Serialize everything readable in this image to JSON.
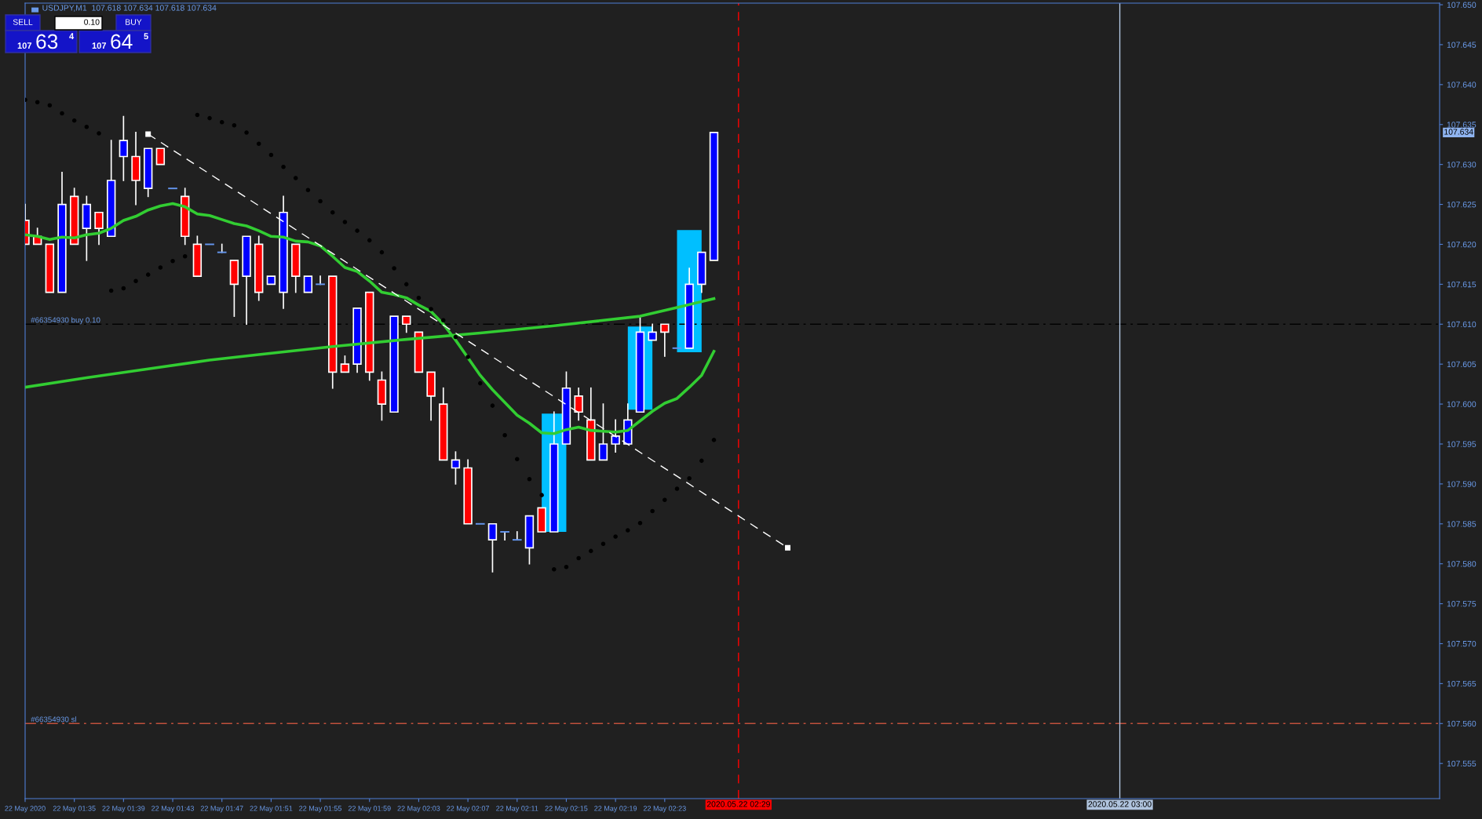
{
  "chart_data": {
    "type": "candlestick",
    "title": "USDJPY,M1  107.618 107.634 107.618 107.634",
    "x": [
      "2020-05-22T01:31",
      "2020-05-22T01:32",
      "2020-05-22T01:33",
      "2020-05-22T01:34",
      "2020-05-22T01:35",
      "2020-05-22T01:36",
      "2020-05-22T01:37",
      "2020-05-22T01:38",
      "2020-05-22T01:39",
      "2020-05-22T01:40",
      "2020-05-22T01:41",
      "2020-05-22T01:42",
      "2020-05-22T01:43",
      "2020-05-22T01:44",
      "2020-05-22T01:45",
      "2020-05-22T01:46",
      "2020-05-22T01:47",
      "2020-05-22T01:48",
      "2020-05-22T01:49",
      "2020-05-22T01:50",
      "2020-05-22T01:51",
      "2020-05-22T01:52",
      "2020-05-22T01:53",
      "2020-05-22T01:54",
      "2020-05-22T01:55",
      "2020-05-22T01:56",
      "2020-05-22T01:57",
      "2020-05-22T01:58",
      "2020-05-22T01:59",
      "2020-05-22T02:00",
      "2020-05-22T02:01",
      "2020-05-22T02:02",
      "2020-05-22T02:03",
      "2020-05-22T02:04",
      "2020-05-22T02:05",
      "2020-05-22T02:06",
      "2020-05-22T02:07",
      "2020-05-22T02:08",
      "2020-05-22T02:09",
      "2020-05-22T02:10",
      "2020-05-22T02:11",
      "2020-05-22T02:12",
      "2020-05-22T02:13",
      "2020-05-22T02:14",
      "2020-05-22T02:15",
      "2020-05-22T02:16",
      "2020-05-22T02:17",
      "2020-05-22T02:18",
      "2020-05-22T02:19",
      "2020-05-22T02:20",
      "2020-05-22T02:21",
      "2020-05-22T02:22",
      "2020-05-22T02:23",
      "2020-05-22T02:24",
      "2020-05-22T02:25",
      "2020-05-22T02:26",
      "2020-05-22T02:27"
    ],
    "ohlc": [
      [
        107.623,
        107.625,
        107.62,
        107.62
      ],
      [
        107.621,
        107.622,
        107.62,
        107.62
      ],
      [
        107.62,
        107.62,
        107.614,
        107.614
      ],
      [
        107.614,
        107.629,
        107.614,
        107.625
      ],
      [
        107.626,
        107.627,
        107.62,
        107.62
      ],
      [
        107.622,
        107.626,
        107.618,
        107.625
      ],
      [
        107.624,
        107.624,
        107.62,
        107.622
      ],
      [
        107.621,
        107.633,
        107.621,
        107.628
      ],
      [
        107.631,
        107.636,
        107.628,
        107.633
      ],
      [
        107.631,
        107.634,
        107.625,
        107.628
      ],
      [
        107.627,
        107.632,
        107.626,
        107.632
      ],
      [
        107.632,
        107.632,
        107.63,
        107.63
      ],
      [
        107.627,
        107.627,
        107.627,
        107.627
      ],
      [
        107.626,
        107.627,
        107.62,
        107.621
      ],
      [
        107.62,
        107.621,
        107.616,
        107.616
      ],
      [
        107.62,
        107.62,
        107.62,
        107.62
      ],
      [
        107.619,
        107.62,
        107.619,
        107.619
      ],
      [
        107.618,
        107.618,
        107.611,
        107.615
      ],
      [
        107.616,
        107.621,
        107.61,
        107.621
      ],
      [
        107.62,
        107.621,
        107.613,
        107.614
      ],
      [
        107.615,
        107.616,
        107.615,
        107.616
      ],
      [
        107.614,
        107.626,
        107.612,
        107.624
      ],
      [
        107.62,
        107.62,
        107.614,
        107.616
      ],
      [
        107.614,
        107.616,
        107.614,
        107.616
      ],
      [
        107.615,
        107.616,
        107.615,
        107.615
      ],
      [
        107.616,
        107.616,
        107.602,
        107.604
      ],
      [
        107.605,
        107.606,
        107.604,
        107.604
      ],
      [
        107.605,
        107.612,
        107.604,
        107.612
      ],
      [
        107.614,
        107.614,
        107.603,
        107.604
      ],
      [
        107.603,
        107.604,
        107.598,
        107.6
      ],
      [
        107.599,
        107.611,
        107.599,
        107.611
      ],
      [
        107.611,
        107.611,
        107.609,
        107.61
      ],
      [
        107.609,
        107.609,
        107.604,
        107.604
      ],
      [
        107.604,
        107.604,
        107.598,
        107.601
      ],
      [
        107.6,
        107.602,
        107.593,
        107.593
      ],
      [
        107.592,
        107.594,
        107.59,
        107.593
      ],
      [
        107.592,
        107.593,
        107.585,
        107.585
      ],
      [
        107.585,
        107.585,
        107.585,
        107.585
      ],
      [
        107.583,
        107.585,
        107.579,
        107.585
      ],
      [
        107.584,
        107.584,
        107.583,
        107.584
      ],
      [
        107.583,
        107.584,
        107.583,
        107.583
      ],
      [
        107.582,
        107.586,
        107.58,
        107.586
      ],
      [
        107.587,
        107.587,
        107.584,
        107.584
      ],
      [
        107.584,
        107.599,
        107.584,
        107.595
      ],
      [
        107.595,
        107.604,
        107.595,
        107.602
      ],
      [
        107.601,
        107.602,
        107.598,
        107.599
      ],
      [
        107.598,
        107.602,
        107.593,
        107.593
      ],
      [
        107.593,
        107.6,
        107.593,
        107.595
      ],
      [
        107.595,
        107.598,
        107.594,
        107.596
      ],
      [
        107.595,
        107.6,
        107.595,
        107.598
      ],
      [
        107.599,
        107.611,
        107.599,
        107.609
      ],
      [
        107.608,
        107.61,
        107.608,
        107.609
      ],
      [
        107.61,
        107.61,
        107.606,
        107.609
      ],
      [
        107.607,
        107.607,
        107.607,
        107.607
      ],
      [
        107.607,
        107.617,
        107.607,
        107.615
      ],
      [
        107.615,
        107.619,
        107.614,
        107.619
      ],
      [
        107.618,
        107.634,
        107.618,
        107.634
      ]
    ],
    "colors": [
      "#ff0000",
      "#ff0000",
      "#ff0000",
      "#0000ff",
      "#ff0000",
      "#0000ff",
      "#ff0000",
      "#0000ff",
      "#0000ff",
      "#ff0000",
      "#0000ff",
      "#ff0000",
      "#6495ed",
      "#ff0000",
      "#ff0000",
      "#6495ed",
      "#6495ed",
      "#ff0000",
      "#0000ff",
      "#ff0000",
      "#0000ff",
      "#0000ff",
      "#ff0000",
      "#0000ff",
      "#6495ed",
      "#ff0000",
      "#ff0000",
      "#0000ff",
      "#ff0000",
      "#ff0000",
      "#0000ff",
      "#ff0000",
      "#ff0000",
      "#ff0000",
      "#ff0000",
      "#0000ff",
      "#ff0000",
      "#6495ed",
      "#0000ff",
      "#6495ed",
      "#6495ed",
      "#0000ff",
      "#ff0000",
      "#0000ff",
      "#0000ff",
      "#ff0000",
      "#ff0000",
      "#0000ff",
      "#0000ff",
      "#0000ff",
      "#0000ff",
      "#0000ff",
      "#ff0000",
      "#6495ed",
      "#0000ff",
      "#0000ff",
      "#0000ff"
    ],
    "series": [
      {
        "type": "bar",
        "color": "#00bfff",
        "x": [
          "2020-05-22T02:14",
          "2020-05-22T02:21",
          "2020-05-22T02:25"
        ],
        "base": [
          107.584,
          107.5993,
          107.6065
        ],
        "values": [
          0.0148,
          0.0104,
          0.0153
        ]
      },
      {
        "type": "line",
        "color": "#32cd32",
        "values": [
          107.6212,
          107.621,
          107.6206,
          107.6209,
          107.6208,
          107.6212,
          107.6214,
          107.622,
          107.623,
          107.6235,
          107.6243,
          107.6248,
          107.6251,
          107.6247,
          107.6238,
          107.6236,
          107.6231,
          107.6226,
          107.6223,
          107.6217,
          107.621,
          107.6209,
          107.6204,
          107.6203,
          107.6198,
          107.6185,
          107.6171,
          107.6166,
          107.6154,
          107.614,
          107.6137,
          107.6133,
          107.6124,
          107.6116,
          107.61,
          107.608,
          107.6058,
          107.6036,
          107.6018,
          107.6002,
          107.5986,
          107.5976,
          107.5964,
          107.5963,
          107.5968,
          107.5971,
          107.5967,
          107.5966,
          107.5965,
          107.5967,
          107.5979,
          107.5991,
          107.6001,
          107.6007,
          107.6021,
          107.6036,
          107.6066
        ]
      },
      {
        "type": "line",
        "color": "#32cd32",
        "x": [
          "2020-05-22T01:31",
          "2020-05-22T01:36",
          "2020-05-22T01:41",
          "2020-05-22T01:46",
          "2020-05-22T01:50",
          "2020-05-22T01:56",
          "2020-05-22T02:02",
          "2020-05-22T02:08",
          "2020-05-22T02:14",
          "2020-05-22T02:21",
          "2020-05-22T02:24",
          "2020-05-22T02:27"
        ],
        "values": [
          107.6021,
          107.6033,
          107.6044,
          107.6055,
          107.6062,
          107.6072,
          107.6081,
          107.6089,
          107.6098,
          107.611,
          107.6121,
          107.6132
        ]
      },
      {
        "type": "scatter",
        "color": "#000000",
        "values": [
          107.6381,
          107.6378,
          107.6374,
          107.6364,
          107.6355,
          107.6347,
          107.6339,
          107.6142,
          107.6145,
          107.6154,
          107.6162,
          107.6171,
          107.6179,
          107.6185,
          107.6362,
          107.6358,
          107.6353,
          107.6349,
          107.634,
          107.6326,
          107.6312,
          107.6297,
          107.6283,
          107.6268,
          107.6254,
          107.624,
          107.6228,
          107.6217,
          107.6205,
          107.619,
          107.617,
          107.615,
          107.6133,
          107.6119,
          107.6105,
          107.6084,
          107.6059,
          107.6026,
          107.5998,
          107.5961,
          107.5931,
          107.5906,
          107.5886,
          107.5793,
          107.5796,
          107.5807,
          107.5816,
          107.5825,
          107.5834,
          107.5842,
          107.5851,
          107.5866,
          107.588,
          107.5894,
          107.5907,
          107.5929,
          107.5955
        ]
      },
      {
        "type": "line",
        "color": "#ffffff",
        "line_style": "dashed",
        "marker": "square",
        "x": [
          "2020-05-22T01:41",
          "2020-05-22T02:33"
        ],
        "values": [
          107.6338,
          107.582
        ]
      }
    ],
    "xlim": [
      "2020-05-22T01:31",
      "2020-05-22T03:26"
    ],
    "xticks": [
      {
        "value": "2020-05-22T01:31",
        "label": "22 May 2020"
      },
      {
        "value": "2020-05-22T01:35",
        "label": "22 May 01:35"
      },
      {
        "value": "2020-05-22T01:39",
        "label": "22 May 01:39"
      },
      {
        "value": "2020-05-22T01:43",
        "label": "22 May 01:43"
      },
      {
        "value": "2020-05-22T01:47",
        "label": "22 May 01:47"
      },
      {
        "value": "2020-05-22T01:51",
        "label": "22 May 01:51"
      },
      {
        "value": "2020-05-22T01:55",
        "label": "22 May 01:55"
      },
      {
        "value": "2020-05-22T01:59",
        "label": "22 May 01:59"
      },
      {
        "value": "2020-05-22T02:03",
        "label": "22 May 02:03"
      },
      {
        "value": "2020-05-22T02:07",
        "label": "22 May 02:07"
      },
      {
        "value": "2020-05-22T02:11",
        "label": "22 May 02:11"
      },
      {
        "value": "2020-05-22T02:15",
        "label": "22 May 02:15"
      },
      {
        "value": "2020-05-22T02:19",
        "label": "22 May 02:19"
      },
      {
        "value": "2020-05-22T02:23",
        "label": "22 May 02:23"
      }
    ],
    "ylim": [
      107.5506,
      107.6502
    ],
    "yticks": [
      {
        "value": 107.555,
        "label": "107.555"
      },
      {
        "value": 107.56,
        "label": "107.560"
      },
      {
        "value": 107.565,
        "label": "107.565"
      },
      {
        "value": 107.57,
        "label": "107.570"
      },
      {
        "value": 107.575,
        "label": "107.575"
      },
      {
        "value": 107.58,
        "label": "107.580"
      },
      {
        "value": 107.585,
        "label": "107.585"
      },
      {
        "value": 107.59,
        "label": "107.590"
      },
      {
        "value": 107.595,
        "label": "107.595"
      },
      {
        "value": 107.6,
        "label": "107.600"
      },
      {
        "value": 107.605,
        "label": "107.605"
      },
      {
        "value": 107.61,
        "label": "107.610"
      },
      {
        "value": 107.615,
        "label": "107.615"
      },
      {
        "value": 107.62,
        "label": "107.620"
      },
      {
        "value": 107.625,
        "label": "107.625"
      },
      {
        "value": 107.63,
        "label": "107.630"
      },
      {
        "value": 107.635,
        "label": "107.635"
      },
      {
        "value": 107.64,
        "label": "107.640"
      },
      {
        "value": 107.645,
        "label": "107.645"
      },
      {
        "value": 107.65,
        "label": "107.650"
      }
    ],
    "ref_lines": [
      {
        "axis": "y",
        "value": 107.61,
        "label": "#66354930 buy 0.10",
        "color": "#000000",
        "line_style": "dashdot"
      },
      {
        "axis": "y",
        "value": 107.56,
        "label": "#66354930 sl",
        "color": "#c0503c",
        "line_style": "dashdot"
      },
      {
        "axis": "x",
        "value": "2020-05-22T02:29",
        "label": "2020.05.22 02:29",
        "color": "#ff0000",
        "line_style": "dashed"
      },
      {
        "axis": "x",
        "value": "2020-05-22T03:00",
        "label": "2020.05.22 03:00",
        "color": "#b0c4de",
        "line_style": "solid"
      }
    ],
    "annotations": [
      "SELL",
      "0.10",
      "BUY",
      "107",
      "63",
      "4",
      "107",
      "64",
      "5",
      "107.634"
    ],
    "grid": false,
    "legend": false
  }
}
